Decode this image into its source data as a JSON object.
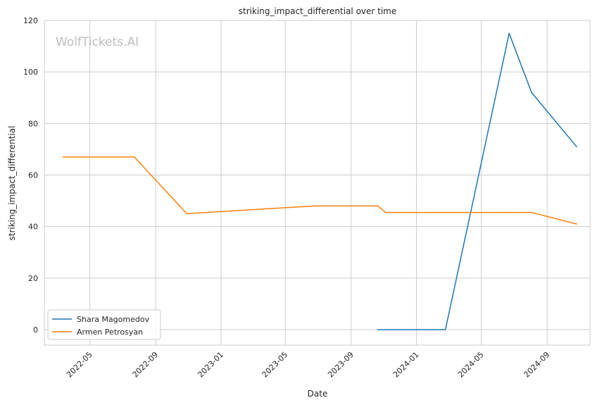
{
  "chart_data": {
    "type": "line",
    "title": "striking_impact_differential over time",
    "xlabel": "Date",
    "ylabel": "striking_impact_differential",
    "watermark": "WolfTickets.AI",
    "x_axis_type": "date",
    "xlim": [
      "2022-02-05",
      "2024-11-20"
    ],
    "ylim": [
      -6,
      120
    ],
    "x_ticks": [
      "2022-05-01",
      "2022-09-01",
      "2023-01-01",
      "2023-05-01",
      "2023-09-01",
      "2024-01-01",
      "2024-05-01",
      "2024-09-01"
    ],
    "x_tick_labels": [
      "2022-05",
      "2022-09",
      "2023-01",
      "2023-05",
      "2023-09",
      "2024-01",
      "2024-05",
      "2024-09"
    ],
    "y_ticks": [
      0,
      20,
      40,
      60,
      80,
      100,
      120
    ],
    "y_tick_labels": [
      "0",
      "20",
      "40",
      "60",
      "80",
      "100",
      "120"
    ],
    "grid": true,
    "legend_position": "lower-left",
    "series": [
      {
        "name": "Shara Magomedov",
        "color": "#1f77b4",
        "points": [
          {
            "x": "2023-10-21",
            "y": 0
          },
          {
            "x": "2024-02-24",
            "y": 0
          },
          {
            "x": "2024-06-22",
            "y": 115
          },
          {
            "x": "2024-08-03",
            "y": 92
          },
          {
            "x": "2024-10-26",
            "y": 71
          }
        ]
      },
      {
        "name": "Armen Petrosyan",
        "color": "#ff7f0e",
        "points": [
          {
            "x": "2022-03-12",
            "y": 67
          },
          {
            "x": "2022-07-23",
            "y": 67
          },
          {
            "x": "2022-10-29",
            "y": 45
          },
          {
            "x": "2023-06-24",
            "y": 48
          },
          {
            "x": "2023-10-21",
            "y": 48
          },
          {
            "x": "2023-11-04",
            "y": 45.5
          },
          {
            "x": "2024-08-03",
            "y": 45.5
          },
          {
            "x": "2024-10-26",
            "y": 41
          }
        ]
      }
    ]
  }
}
